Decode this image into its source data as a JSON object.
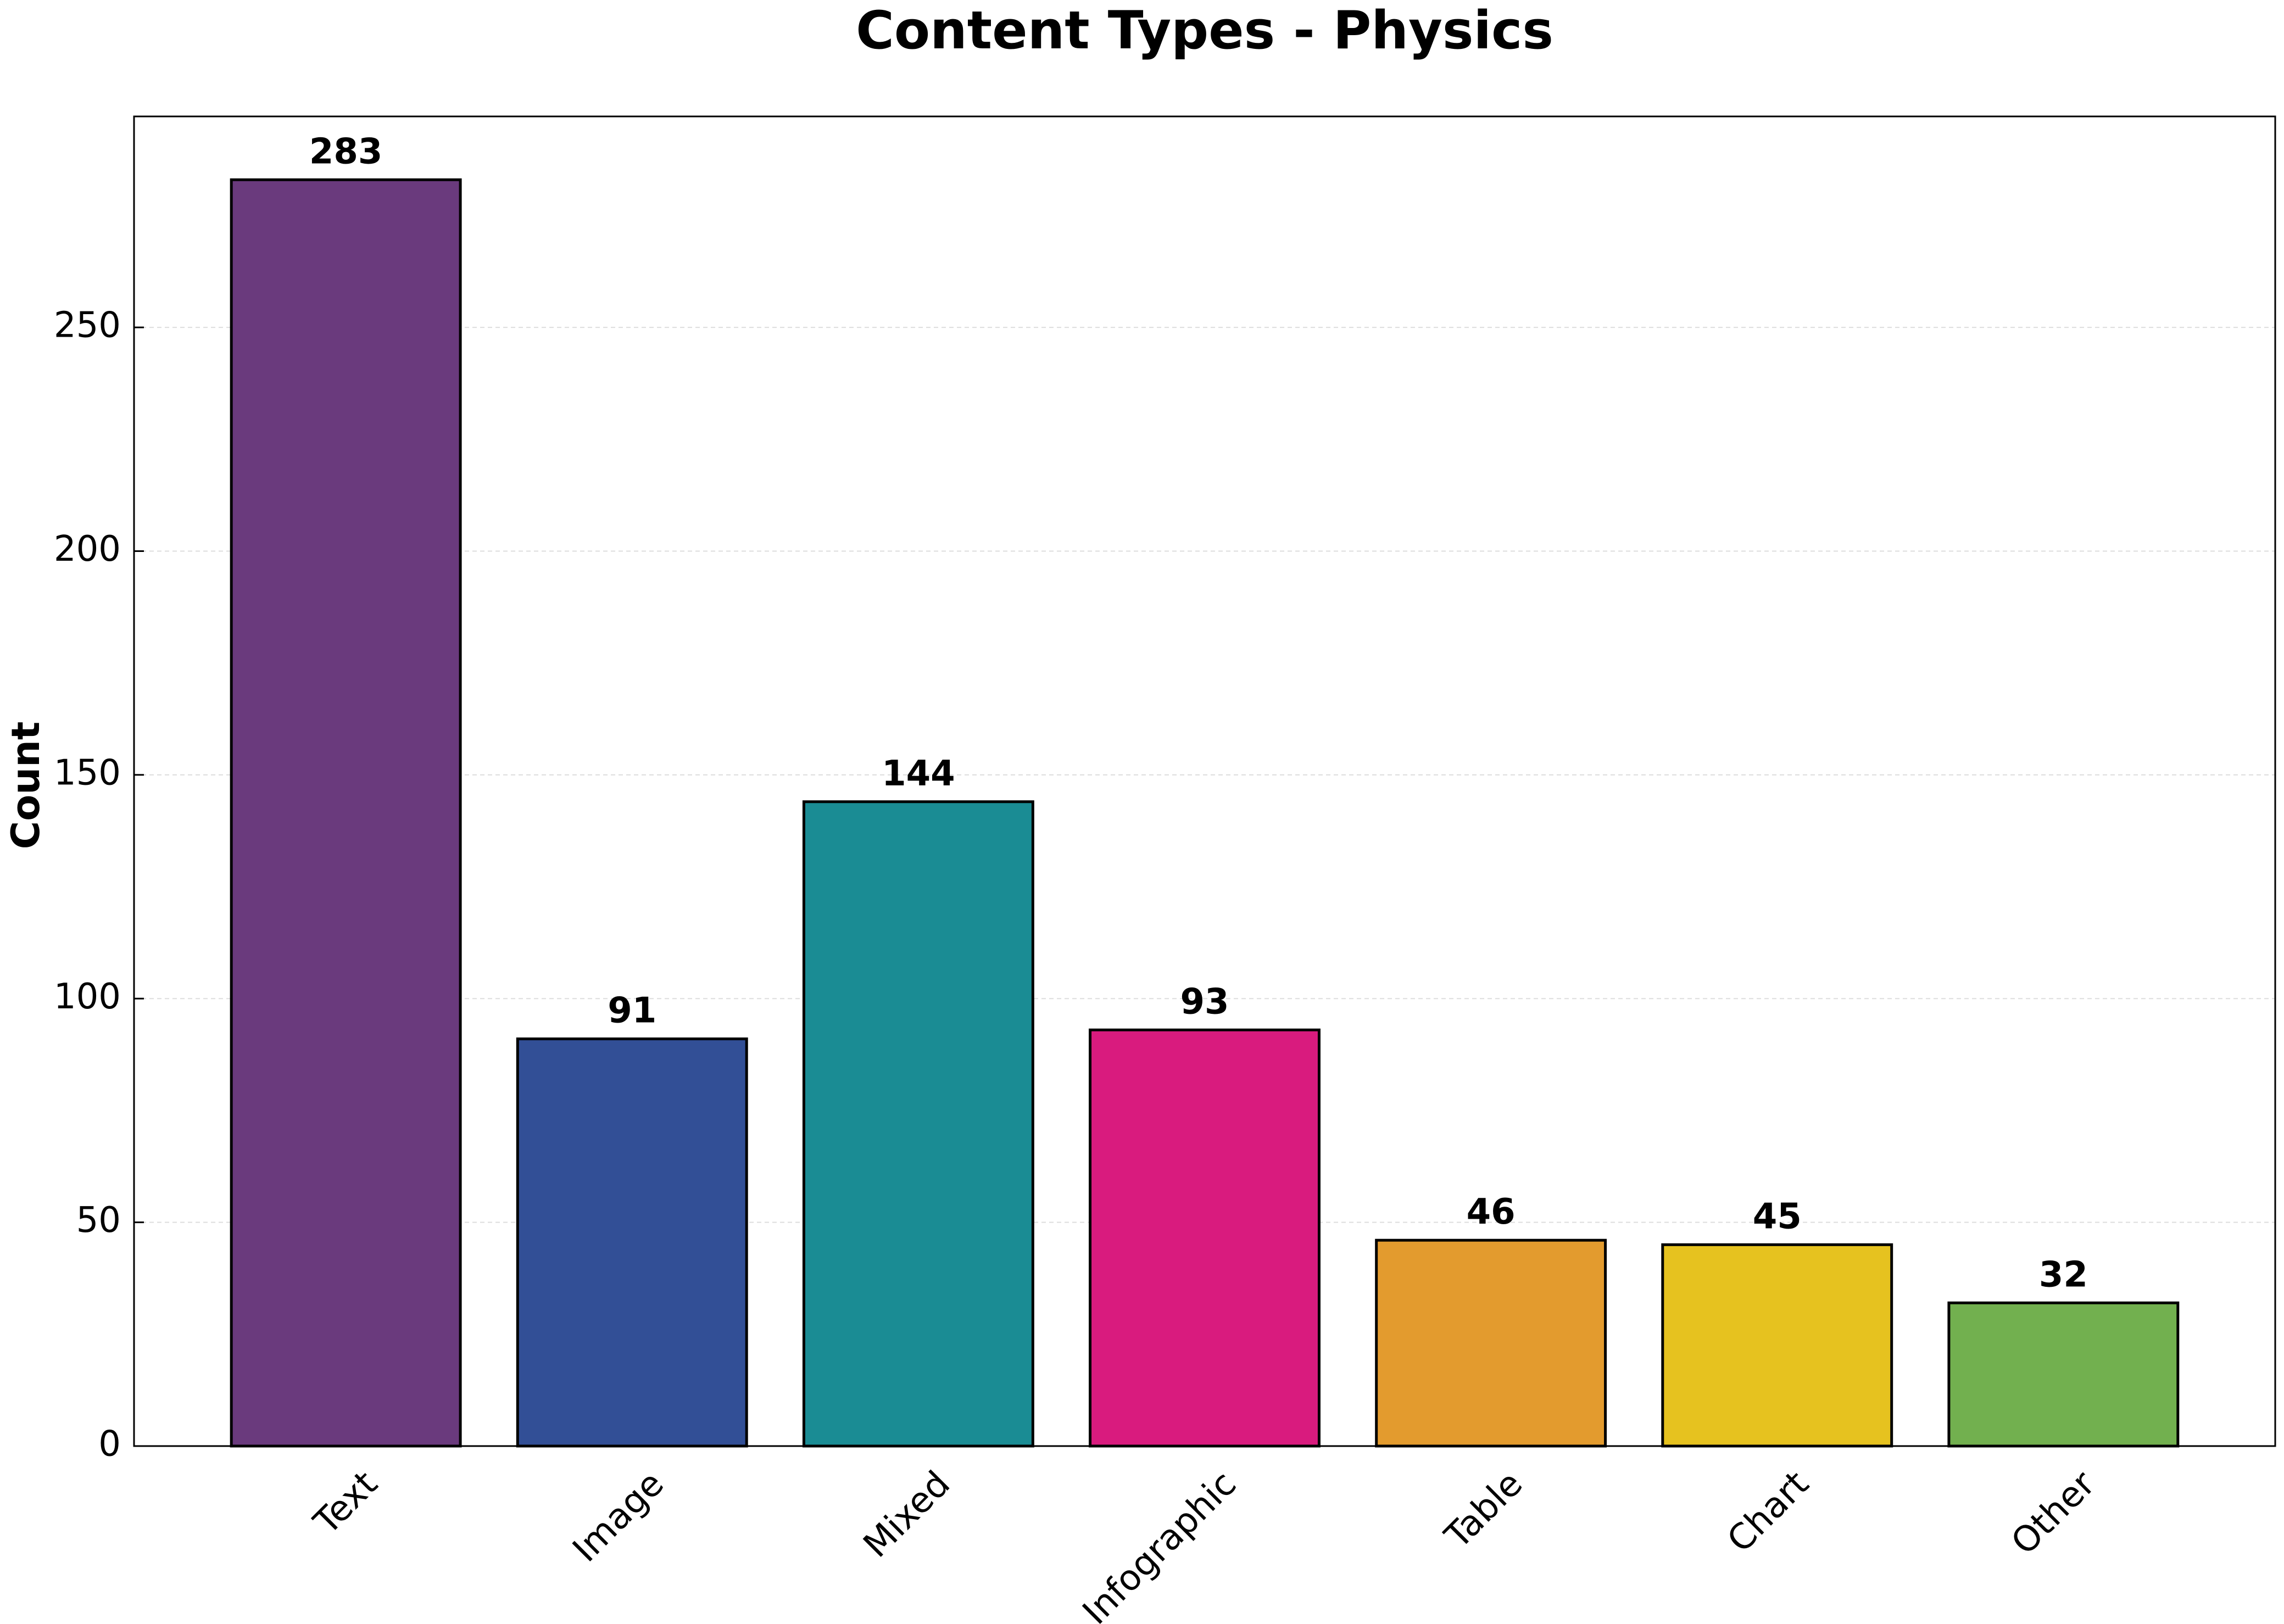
{
  "chart_data": {
    "type": "bar",
    "title": "Content Types - Physics",
    "ylabel": "Count",
    "categories": [
      "Text",
      "Image",
      "Mixed",
      "Infographic",
      "Table",
      "Chart",
      "Other"
    ],
    "values": [
      283,
      91,
      144,
      93,
      46,
      45,
      32
    ],
    "colors": [
      "#6a3a7d",
      "#324f96",
      "#1a8c94",
      "#d91b7e",
      "#e39b2e",
      "#e6c21f",
      "#72b04f"
    ],
    "ylim": [
      0,
      297.15
    ],
    "yticks": [
      0,
      50,
      100,
      150,
      200,
      250
    ],
    "grid": true
  }
}
